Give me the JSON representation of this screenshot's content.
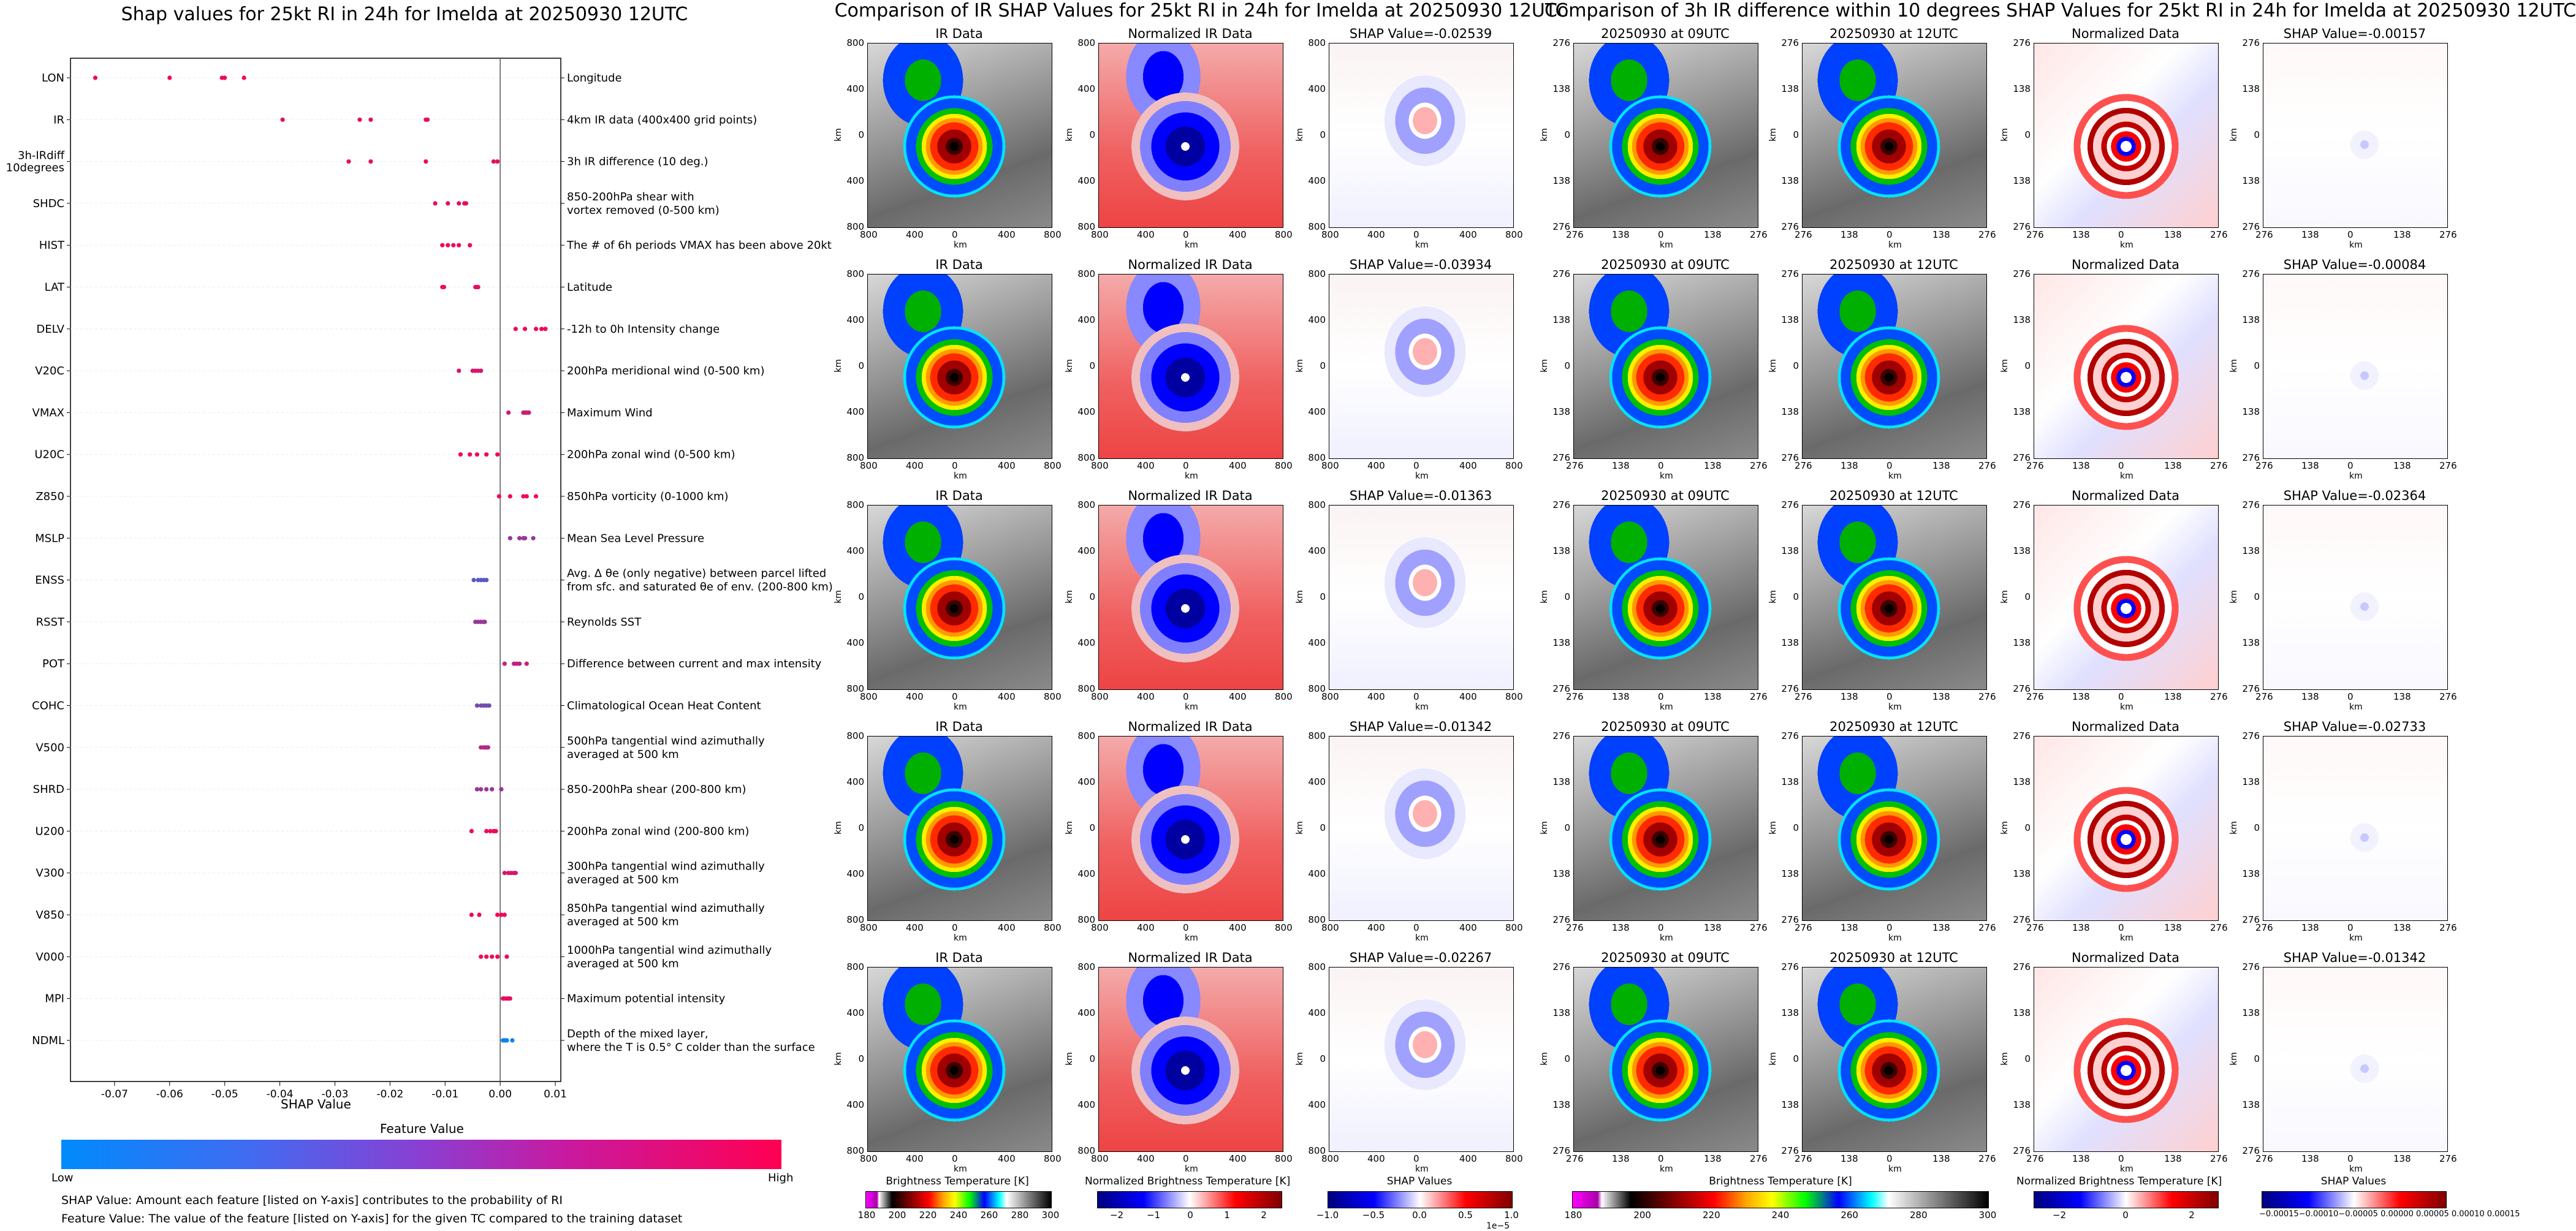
{
  "left_title": "Shap values for 25kt RI in 24h for Imelda at 20250930 12UTC",
  "mid_title": "Comparison of IR SHAP Values for 25kt RI in 24h for Imelda at 20250930 12UTC",
  "right_title": "Comparison of 3h IR difference within 10 degrees SHAP Values for 25kt RI in 24h for Imelda at 20250930 12UTC",
  "chart_data": {
    "type": "scatter",
    "title": "Shap values for 25kt RI in 24h for Imelda at 20250930 12UTC",
    "xlabel": "SHAP Value",
    "xlim": [
      -0.078,
      0.011
    ],
    "xticks": [
      "-0.07",
      "-0.06",
      "-0.05",
      "-0.04",
      "-0.03",
      "-0.02",
      "-0.01",
      "0.00",
      "0.01"
    ],
    "tick_values": [
      -0.07,
      -0.06,
      -0.05,
      -0.04,
      -0.03,
      -0.02,
      -0.01,
      0.0,
      0.01
    ],
    "features": [
      {
        "name": "LON",
        "desc": "Longitude",
        "shap": [
          -0.0735,
          -0.06,
          -0.0505,
          -0.05,
          -0.0465
        ],
        "fv": [
          0.95,
          0.95,
          0.95,
          0.95,
          0.95
        ]
      },
      {
        "name": "IR",
        "desc": "4km IR data (400x400 grid points)",
        "shap": [
          -0.0395,
          -0.0255,
          -0.0235,
          -0.0135,
          -0.0132
        ],
        "fv": [
          0.9,
          0.9,
          0.9,
          0.9,
          0.9
        ]
      },
      {
        "name": "3h-IRdiff\n10degrees",
        "desc": "3h IR difference (10 deg.)",
        "shap": [
          -0.0275,
          -0.0235,
          -0.0135,
          -0.0012,
          -0.0005
        ],
        "fv": [
          0.9,
          0.9,
          0.9,
          0.9,
          0.9
        ]
      },
      {
        "name": "SHDC",
        "desc": "850-200hPa shear with\nvortex removed (0-500 km)",
        "shap": [
          -0.0118,
          -0.0095,
          -0.0075,
          -0.0065,
          -0.0062
        ],
        "fv": [
          0.9,
          0.9,
          0.9,
          0.9,
          0.9
        ]
      },
      {
        "name": "HIST",
        "desc": "The # of 6h periods VMAX has been above 20kt",
        "shap": [
          -0.0105,
          -0.0095,
          -0.0085,
          -0.0075,
          -0.0055
        ],
        "fv": [
          0.95,
          0.95,
          0.95,
          0.95,
          0.95
        ]
      },
      {
        "name": "LAT",
        "desc": "Latitude",
        "shap": [
          -0.0105,
          -0.0102,
          -0.0045,
          -0.0042,
          -0.004
        ],
        "fv": [
          0.9,
          0.9,
          0.9,
          0.9,
          0.9
        ]
      },
      {
        "name": "DELV",
        "desc": "-12h to 0h Intensity change",
        "shap": [
          0.0028,
          0.0045,
          0.0065,
          0.0075,
          0.0082
        ],
        "fv": [
          0.95,
          0.95,
          0.95,
          0.95,
          0.95
        ]
      },
      {
        "name": "V20C",
        "desc": "200hPa meridional wind (0-500 km)",
        "shap": [
          -0.0075,
          -0.005,
          -0.0045,
          -0.004,
          -0.0035
        ],
        "fv": [
          0.85,
          0.85,
          0.85,
          0.85,
          0.85
        ]
      },
      {
        "name": "VMAX",
        "desc": "Maximum Wind",
        "shap": [
          0.0015,
          0.0042,
          0.0045,
          0.0048,
          0.0052
        ],
        "fv": [
          0.8,
          0.8,
          0.8,
          0.8,
          0.8
        ]
      },
      {
        "name": "U20C",
        "desc": "200hPa zonal wind (0-500 km)",
        "shap": [
          -0.0072,
          -0.0055,
          -0.0042,
          -0.0025,
          -0.0005
        ],
        "fv": [
          0.95,
          0.95,
          0.95,
          0.95,
          0.95
        ]
      },
      {
        "name": "Z850",
        "desc": "850hPa vorticity (0-1000 km)",
        "shap": [
          -0.0002,
          0.0018,
          0.0042,
          0.0048,
          0.0065
        ],
        "fv": [
          0.95,
          0.95,
          0.95,
          0.95,
          0.95
        ]
      },
      {
        "name": "MSLP",
        "desc": "Mean Sea Level Pressure",
        "shap": [
          0.0018,
          0.0035,
          0.0042,
          0.0045,
          0.006
        ],
        "fv": [
          0.6,
          0.6,
          0.6,
          0.6,
          0.6
        ]
      },
      {
        "name": "ENSS",
        "desc": "Avg. Δ θe (only negative) between parcel lifted\nfrom sfc. and saturated θe of env. (200-800 km)",
        "shap": [
          -0.0048,
          -0.004,
          -0.0035,
          -0.003,
          -0.0025
        ],
        "fv": [
          0.35,
          0.35,
          0.35,
          0.35,
          0.35
        ]
      },
      {
        "name": "RSST",
        "desc": "Reynolds SST",
        "shap": [
          -0.0045,
          -0.004,
          -0.0035,
          -0.003,
          -0.0028
        ],
        "fv": [
          0.6,
          0.6,
          0.6,
          0.6,
          0.6
        ]
      },
      {
        "name": "POT",
        "desc": "Difference between current and max intensity",
        "shap": [
          0.0008,
          0.0025,
          0.003,
          0.0035,
          0.0048
        ],
        "fv": [
          0.75,
          0.75,
          0.75,
          0.75,
          0.75
        ]
      },
      {
        "name": "COHC",
        "desc": "Climatological Ocean Heat Content",
        "shap": [
          -0.0042,
          -0.0035,
          -0.003,
          -0.0025,
          -0.002
        ],
        "fv": [
          0.45,
          0.45,
          0.45,
          0.45,
          0.45
        ]
      },
      {
        "name": "V500",
        "desc": "500hPa tangential wind azimuthally\naveraged at 500 km",
        "shap": [
          -0.0035,
          -0.003,
          -0.0028,
          -0.0025,
          -0.0022
        ],
        "fv": [
          0.7,
          0.7,
          0.7,
          0.7,
          0.7
        ]
      },
      {
        "name": "SHRD",
        "desc": "850-200hPa shear (200-800 km)",
        "shap": [
          -0.0042,
          -0.0035,
          -0.0025,
          -0.0015,
          0.0002
        ],
        "fv": [
          0.6,
          0.6,
          0.6,
          0.6,
          0.6
        ]
      },
      {
        "name": "U200",
        "desc": "200hPa zonal wind (200-800 km)",
        "shap": [
          -0.0052,
          -0.0025,
          -0.0018,
          -0.0012,
          -0.0008
        ],
        "fv": [
          0.95,
          0.95,
          0.95,
          0.95,
          0.95
        ]
      },
      {
        "name": "V300",
        "desc": "300hPa tangential wind azimuthally\naveraged at 500 km",
        "shap": [
          0.0008,
          0.0015,
          0.002,
          0.0025,
          0.0028
        ],
        "fv": [
          0.85,
          0.85,
          0.85,
          0.85,
          0.85
        ]
      },
      {
        "name": "V850",
        "desc": "850hPa tangential wind azimuthally\naveraged at 500 km",
        "shap": [
          -0.0052,
          -0.0038,
          -0.0005,
          0.0002,
          0.0008
        ],
        "fv": [
          0.95,
          0.95,
          0.95,
          0.95,
          0.95
        ]
      },
      {
        "name": "V000",
        "desc": "1000hPa tangential wind azimuthally\naveraged at 500 km",
        "shap": [
          -0.0035,
          -0.0025,
          -0.0015,
          -0.0005,
          0.0012
        ],
        "fv": [
          0.95,
          0.95,
          0.95,
          0.95,
          0.95
        ]
      },
      {
        "name": "MPI",
        "desc": "Maximum potential intensity",
        "shap": [
          0.0005,
          0.0008,
          0.0012,
          0.0015,
          0.0018
        ],
        "fv": [
          0.9,
          0.9,
          0.9,
          0.9,
          0.9
        ]
      },
      {
        "name": "NDML",
        "desc": "Depth of the mixed layer,\nwhere the T is 0.5° C colder than the surface",
        "shap": [
          0.0005,
          0.0008,
          0.001,
          0.0012,
          0.0022
        ],
        "fv": [
          0.05,
          0.05,
          0.05,
          0.05,
          0.05
        ]
      }
    ]
  },
  "colorbar": {
    "title": "Feature Value",
    "low": "Low",
    "high": "High",
    "low_color": "#008afb",
    "high_color": "#ff0052"
  },
  "notes": {
    "line1": "SHAP Value: Amount each feature [listed on Y-axis] contributes to the probability of RI",
    "line2": "Feature Value: The value of the feature [listed on Y-axis] for the given TC compared to the training dataset"
  },
  "mid_panels": {
    "col_titles": [
      "IR Data",
      "Normalized IR Data"
    ],
    "shap_titles": [
      "SHAP Value=-0.02539",
      "SHAP Value=-0.03934",
      "SHAP Value=-0.01363",
      "SHAP Value=-0.01342",
      "SHAP Value=-0.02267"
    ],
    "ticks": [
      "800",
      "400",
      "0",
      "400",
      "800"
    ],
    "axis_label": "km"
  },
  "right_panels": {
    "col_titles": [
      "20250930 at 09UTC",
      "20250930 at 12UTC",
      "Normalized Data"
    ],
    "shap_titles": [
      "SHAP Value=-0.00157",
      "SHAP Value=-0.00084",
      "SHAP Value=-0.02364",
      "SHAP Value=-0.02733",
      "SHAP Value=-0.01342"
    ],
    "ticks": [
      "276",
      "138",
      "0",
      "138",
      "276"
    ],
    "axis_label": "km"
  },
  "bottom_colorbars": {
    "bt_title": "Brightness Temperature [K]",
    "bt_ticks": [
      "180",
      "200",
      "220",
      "240",
      "260",
      "280",
      "300"
    ],
    "nbt_title": "Normalized Brightness Temperature [K]",
    "nbt_ticks_mid": [
      "−2",
      "−1",
      "0",
      "1",
      "2"
    ],
    "nbt_ticks_right": [
      "−2",
      "0",
      "2"
    ],
    "shap_title": "SHAP Values",
    "shap_ticks_mid": [
      "−1.0",
      "−0.5",
      "0.0",
      "0.5",
      "1.0"
    ],
    "shap_mult": "1e−5",
    "shap_ticks_right": "−0.00015−0.00010−0.00005 0.00000 0.00005 0.00010 0.00015"
  }
}
